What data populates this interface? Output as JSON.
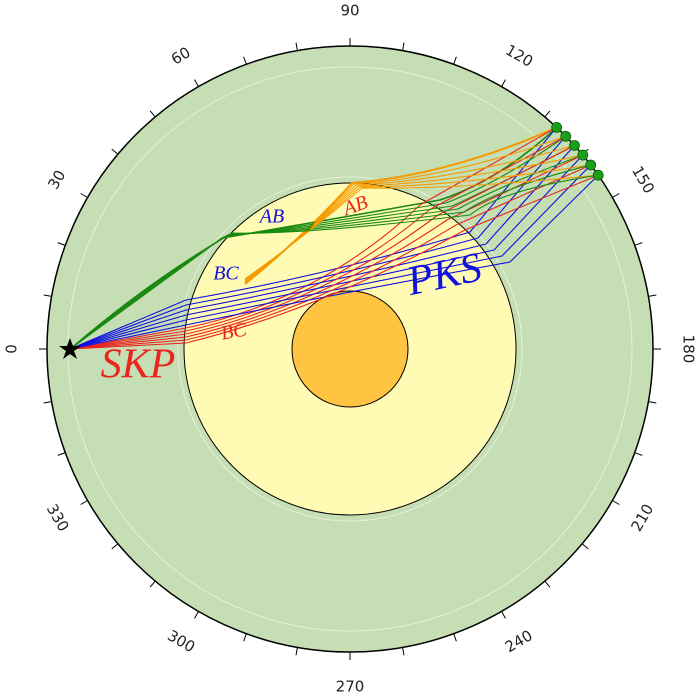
{
  "angle_labels": [
    0,
    30,
    60,
    90,
    120,
    150,
    180,
    210,
    240,
    270,
    300,
    330
  ],
  "phase_labels": {
    "skp": "SKP",
    "pks": "PKS",
    "ab_upper": "AB",
    "bc_upper": "BC",
    "ab_lower": "AB",
    "bc_lower": "BC"
  }
}
